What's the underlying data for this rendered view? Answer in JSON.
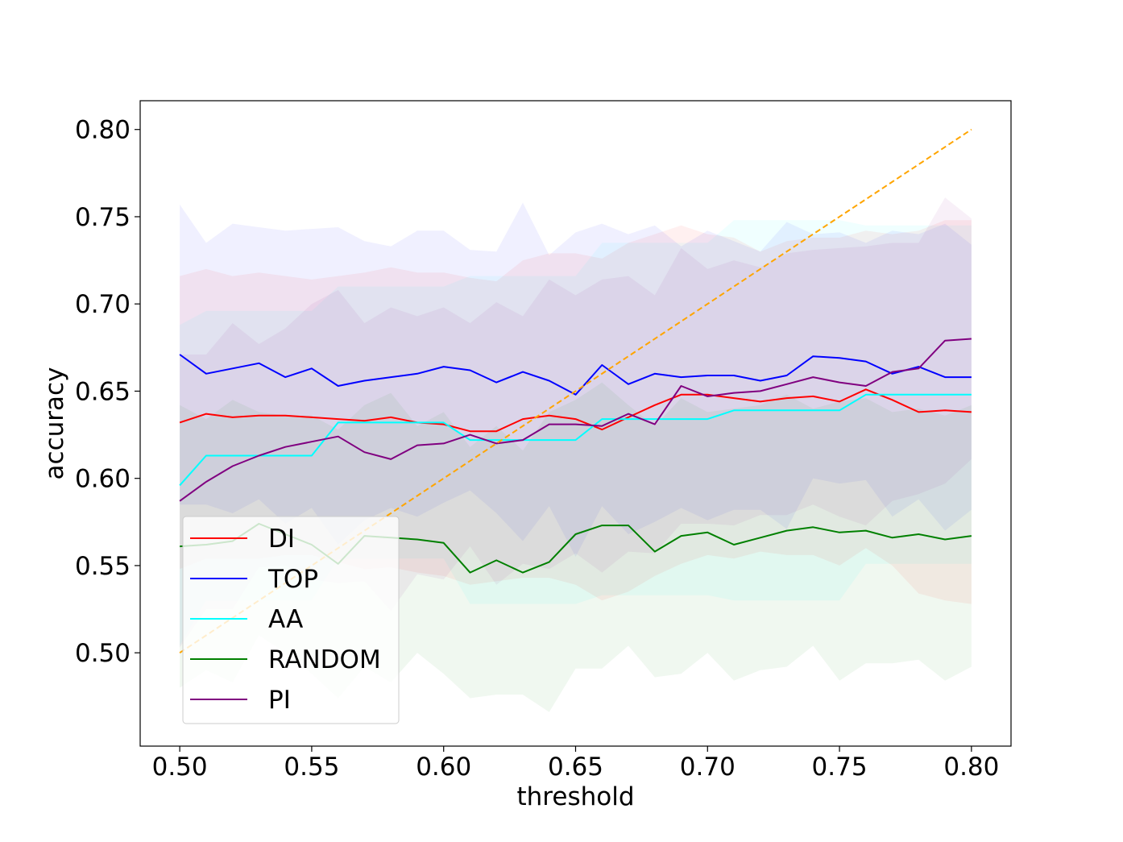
{
  "chart_data": {
    "type": "line",
    "title": "",
    "xlabel": "threshold",
    "ylabel": "accuracy",
    "xlim": [
      0.485,
      0.815
    ],
    "ylim": [
      0.4465,
      0.8165
    ],
    "grid": false,
    "legend_position": "lower-left",
    "x": [
      0.5,
      0.51,
      0.52,
      0.53,
      0.54,
      0.55,
      0.56,
      0.57,
      0.58,
      0.59,
      0.6,
      0.61,
      0.62,
      0.63,
      0.64,
      0.65,
      0.66,
      0.67,
      0.68,
      0.69,
      0.7,
      0.71,
      0.72,
      0.73,
      0.74,
      0.75,
      0.76,
      0.77,
      0.78,
      0.79,
      0.8
    ],
    "x_ticks": [
      0.5,
      0.55,
      0.6,
      0.65,
      0.7,
      0.75,
      0.8
    ],
    "x_tick_labels": [
      "0.50",
      "0.55",
      "0.60",
      "0.65",
      "0.70",
      "0.75",
      "0.80"
    ],
    "y_ticks": [
      0.5,
      0.55,
      0.6,
      0.65,
      0.7,
      0.75,
      0.8
    ],
    "y_tick_labels": [
      "0.50",
      "0.55",
      "0.60",
      "0.65",
      "0.70",
      "0.75",
      "0.80"
    ],
    "series": [
      {
        "name": "DI",
        "color": "#ff0000",
        "values": [
          0.632,
          0.637,
          0.635,
          0.636,
          0.636,
          0.635,
          0.634,
          0.633,
          0.635,
          0.632,
          0.631,
          0.627,
          0.627,
          0.634,
          0.636,
          0.634,
          0.628,
          0.635,
          0.642,
          0.648,
          0.648,
          0.646,
          0.644,
          0.646,
          0.647,
          0.644,
          0.651,
          0.645,
          0.638,
          0.639,
          0.638
        ],
        "upper": [
          0.716,
          0.72,
          0.716,
          0.718,
          0.716,
          0.714,
          0.716,
          0.718,
          0.721,
          0.718,
          0.718,
          0.715,
          0.713,
          0.725,
          0.729,
          0.729,
          0.726,
          0.735,
          0.74,
          0.745,
          0.74,
          0.738,
          0.73,
          0.736,
          0.738,
          0.738,
          0.742,
          0.74,
          0.742,
          0.748,
          0.748
        ],
        "lower": [
          0.548,
          0.554,
          0.554,
          0.554,
          0.556,
          0.556,
          0.552,
          0.548,
          0.549,
          0.546,
          0.544,
          0.539,
          0.541,
          0.543,
          0.543,
          0.539,
          0.53,
          0.535,
          0.544,
          0.551,
          0.556,
          0.554,
          0.558,
          0.556,
          0.556,
          0.55,
          0.56,
          0.55,
          0.534,
          0.53,
          0.528
        ]
      },
      {
        "name": "TOP",
        "color": "#0000ff",
        "values": [
          0.671,
          0.66,
          0.663,
          0.666,
          0.658,
          0.663,
          0.653,
          0.656,
          0.658,
          0.66,
          0.664,
          0.662,
          0.655,
          0.661,
          0.656,
          0.648,
          0.665,
          0.654,
          0.66,
          0.658,
          0.659,
          0.659,
          0.656,
          0.659,
          0.67,
          0.669,
          0.667,
          0.66,
          0.664,
          0.658,
          0.658
        ],
        "upper": [
          0.757,
          0.735,
          0.746,
          0.744,
          0.742,
          0.743,
          0.744,
          0.736,
          0.733,
          0.742,
          0.742,
          0.731,
          0.73,
          0.758,
          0.728,
          0.741,
          0.746,
          0.74,
          0.745,
          0.733,
          0.742,
          0.736,
          0.73,
          0.747,
          0.74,
          0.741,
          0.735,
          0.742,
          0.74,
          0.746,
          0.734
        ],
        "lower": [
          0.585,
          0.585,
          0.58,
          0.588,
          0.574,
          0.583,
          0.562,
          0.576,
          0.583,
          0.578,
          0.586,
          0.593,
          0.58,
          0.564,
          0.584,
          0.555,
          0.584,
          0.568,
          0.575,
          0.583,
          0.576,
          0.582,
          0.582,
          0.571,
          0.6,
          0.597,
          0.599,
          0.578,
          0.588,
          0.57,
          0.582
        ]
      },
      {
        "name": "AA",
        "color": "#00ffff",
        "values": [
          0.596,
          0.613,
          0.613,
          0.613,
          0.613,
          0.613,
          0.632,
          0.632,
          0.632,
          0.632,
          0.632,
          0.622,
          0.622,
          0.622,
          0.622,
          0.622,
          0.634,
          0.634,
          0.634,
          0.634,
          0.634,
          0.639,
          0.639,
          0.639,
          0.639,
          0.639,
          0.648,
          0.648,
          0.648,
          0.648,
          0.648
        ],
        "upper": [
          0.688,
          0.696,
          0.696,
          0.696,
          0.696,
          0.696,
          0.71,
          0.71,
          0.71,
          0.71,
          0.71,
          0.716,
          0.716,
          0.716,
          0.716,
          0.716,
          0.735,
          0.735,
          0.735,
          0.735,
          0.735,
          0.748,
          0.748,
          0.748,
          0.748,
          0.748,
          0.745,
          0.745,
          0.745,
          0.745,
          0.745
        ],
        "lower": [
          0.504,
          0.53,
          0.53,
          0.53,
          0.53,
          0.53,
          0.554,
          0.554,
          0.554,
          0.554,
          0.554,
          0.528,
          0.528,
          0.528,
          0.528,
          0.528,
          0.533,
          0.533,
          0.533,
          0.533,
          0.533,
          0.53,
          0.53,
          0.53,
          0.53,
          0.53,
          0.551,
          0.551,
          0.551,
          0.551,
          0.551
        ]
      },
      {
        "name": "RANDOM",
        "color": "#008000",
        "values": [
          0.561,
          0.562,
          0.564,
          0.574,
          0.568,
          0.562,
          0.551,
          0.567,
          0.566,
          0.565,
          0.563,
          0.546,
          0.553,
          0.546,
          0.552,
          0.568,
          0.573,
          0.573,
          0.558,
          0.567,
          0.569,
          0.562,
          0.566,
          0.57,
          0.572,
          0.569,
          0.57,
          0.566,
          0.568,
          0.565,
          0.567
        ],
        "upper": [
          0.642,
          0.634,
          0.645,
          0.638,
          0.636,
          0.636,
          0.628,
          0.642,
          0.649,
          0.63,
          0.638,
          0.618,
          0.63,
          0.616,
          0.638,
          0.645,
          0.655,
          0.642,
          0.63,
          0.646,
          0.638,
          0.64,
          0.642,
          0.648,
          0.64,
          0.644,
          0.646,
          0.638,
          0.64,
          0.636,
          0.642
        ],
        "lower": [
          0.48,
          0.49,
          0.483,
          0.51,
          0.5,
          0.488,
          0.474,
          0.492,
          0.483,
          0.5,
          0.488,
          0.474,
          0.476,
          0.476,
          0.466,
          0.491,
          0.491,
          0.504,
          0.486,
          0.488,
          0.5,
          0.484,
          0.49,
          0.492,
          0.504,
          0.484,
          0.494,
          0.494,
          0.496,
          0.484,
          0.492
        ]
      },
      {
        "name": "PI",
        "color": "#800080",
        "values": [
          0.587,
          0.598,
          0.607,
          0.613,
          0.618,
          0.621,
          0.624,
          0.615,
          0.611,
          0.619,
          0.62,
          0.625,
          0.62,
          0.622,
          0.631,
          0.631,
          0.63,
          0.637,
          0.631,
          0.653,
          0.647,
          0.649,
          0.65,
          0.654,
          0.658,
          0.655,
          0.653,
          0.661,
          0.663,
          0.679,
          0.68
        ],
        "upper": [
          0.671,
          0.671,
          0.689,
          0.677,
          0.686,
          0.7,
          0.708,
          0.689,
          0.698,
          0.693,
          0.698,
          0.689,
          0.701,
          0.693,
          0.714,
          0.705,
          0.714,
          0.716,
          0.705,
          0.732,
          0.72,
          0.725,
          0.721,
          0.729,
          0.731,
          0.732,
          0.733,
          0.735,
          0.735,
          0.761,
          0.749
        ],
        "lower": [
          0.503,
          0.525,
          0.525,
          0.549,
          0.55,
          0.542,
          0.54,
          0.541,
          0.524,
          0.545,
          0.542,
          0.561,
          0.539,
          0.551,
          0.548,
          0.557,
          0.546,
          0.558,
          0.557,
          0.574,
          0.574,
          0.573,
          0.579,
          0.579,
          0.585,
          0.578,
          0.573,
          0.587,
          0.591,
          0.597,
          0.611
        ]
      },
      {
        "name": "",
        "color": "#ffa500",
        "dashed": true,
        "x": [
          0.5,
          0.8
        ],
        "values": [
          0.5,
          0.8
        ]
      }
    ]
  }
}
